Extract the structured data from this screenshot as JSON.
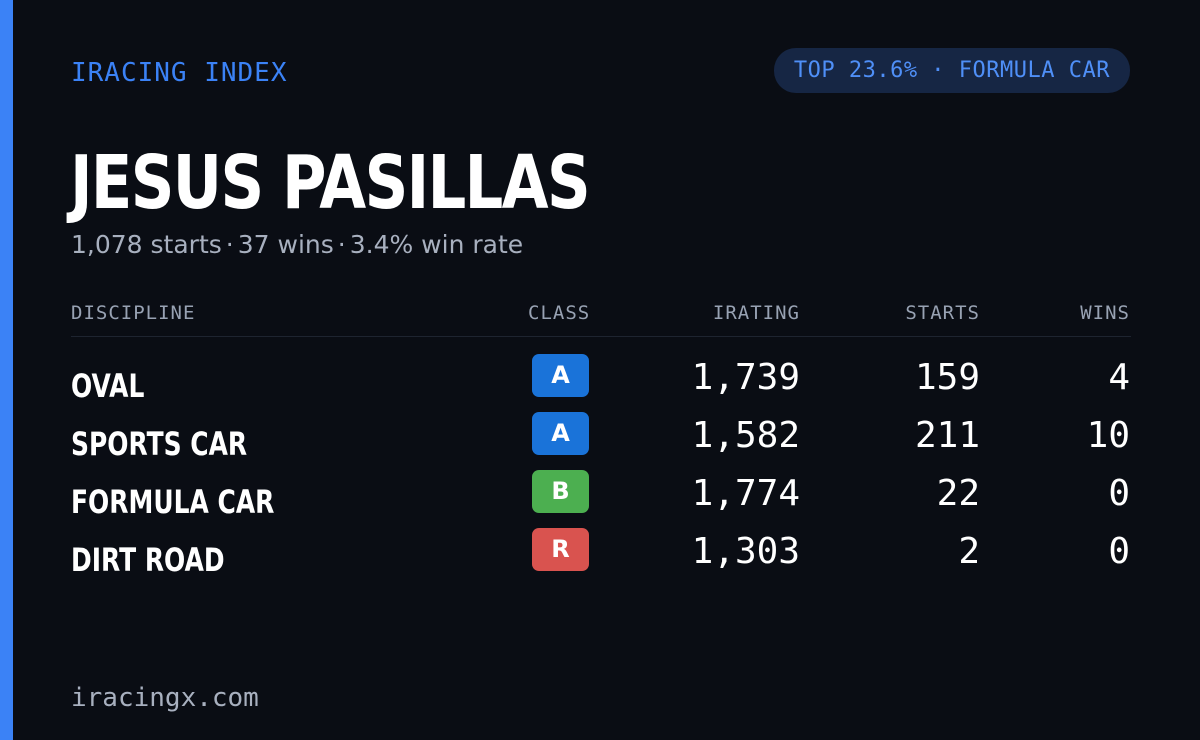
{
  "brand": "IRACING INDEX",
  "pill": "TOP 23.6% · FORMULA CAR",
  "driver": {
    "name": "JESUS PASILLAS",
    "starts": "1,078 starts",
    "wins": "37 wins",
    "win_rate": "3.4% win rate",
    "separator": "·"
  },
  "table": {
    "headers": {
      "discipline": "DISCIPLINE",
      "class": "CLASS",
      "irating": "IRATING",
      "starts": "STARTS",
      "wins": "WINS"
    },
    "rows": [
      {
        "discipline": "OVAL",
        "class": "A",
        "class_color": "#1a73d9",
        "irating": "1,739",
        "starts": "159",
        "wins": "4"
      },
      {
        "discipline": "SPORTS CAR",
        "class": "A",
        "class_color": "#1a73d9",
        "irating": "1,582",
        "starts": "211",
        "wins": "10"
      },
      {
        "discipline": "FORMULA CAR",
        "class": "B",
        "class_color": "#4caf50",
        "irating": "1,774",
        "starts": "22",
        "wins": "0"
      },
      {
        "discipline": "DIRT ROAD",
        "class": "R",
        "class_color": "#d9534f",
        "irating": "1,303",
        "starts": "2",
        "wins": "0"
      }
    ]
  },
  "footer": "iracingx.com",
  "colors": {
    "accent": "#3b82f6",
    "background": "#0a0d14",
    "pill_background": "#162644"
  }
}
